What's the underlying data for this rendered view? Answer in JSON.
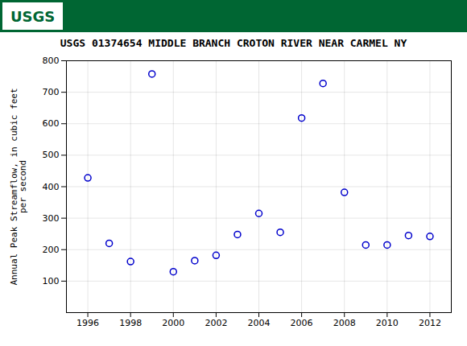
{
  "chart_data": {
    "type": "scatter",
    "title": "USGS 01374654 MIDDLE BRANCH CROTON RIVER NEAR CARMEL NY",
    "ylabel": "Annual Peak Streamflow, in cubic feet\nper second",
    "annotations": [
      "USGS"
    ],
    "x": [
      1996,
      1997,
      1998,
      1999,
      2000,
      2001,
      2002,
      2003,
      2004,
      2005,
      2006,
      2007,
      2008,
      2009,
      2010,
      2011,
      2012
    ],
    "values": [
      428,
      220,
      162,
      758,
      130,
      165,
      182,
      248,
      315,
      255,
      618,
      728,
      382,
      215,
      215,
      245,
      242
    ],
    "color": "#0000cc",
    "xlim": [
      1995.0,
      2013.0
    ],
    "xticks": [
      1996,
      1998,
      2000,
      2002,
      2004,
      2006,
      2008,
      2010,
      2012
    ],
    "ylim": [
      0,
      800
    ],
    "yticks": [
      100,
      200,
      300,
      400,
      500,
      600,
      700,
      800
    ],
    "grid": true
  }
}
